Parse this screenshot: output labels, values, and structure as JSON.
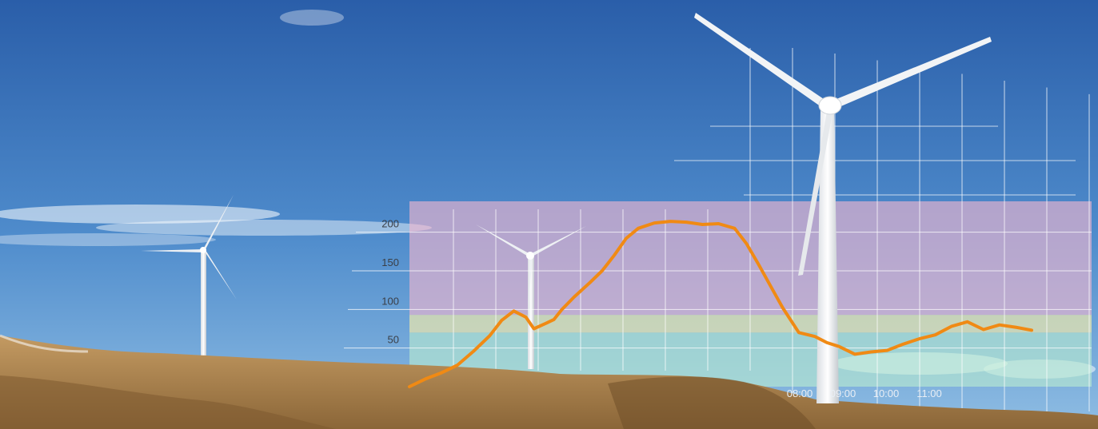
{
  "chart_data": {
    "type": "line",
    "x_tick_labels": [
      "08:00",
      "09:00",
      "10:00",
      "11:00"
    ],
    "y_tick_labels": [
      "50",
      "100",
      "150",
      "200"
    ],
    "y_ticks": [
      50,
      100,
      150,
      200
    ],
    "ylim": [
      0,
      240
    ],
    "grid": true,
    "bands": [
      {
        "from": 0,
        "to": 70,
        "color": "#b9ecd0"
      },
      {
        "from": 70,
        "to": 93,
        "color": "#fff2a8"
      },
      {
        "from": 93,
        "to": 240,
        "color": "#f3b6cf"
      }
    ],
    "line_color": "#f08a14",
    "series": [
      {
        "x": [
          "00:10",
          "00:30",
          "00:50",
          "01:10",
          "01:30",
          "01:50",
          "02:05",
          "02:20",
          "02:35",
          "02:45",
          "03:00",
          "03:10",
          "03:20",
          "03:35",
          "03:55",
          "04:10",
          "04:25",
          "04:40",
          "04:55",
          "05:15",
          "05:35",
          "05:55",
          "06:15",
          "06:35",
          "06:55",
          "07:10",
          "07:25",
          "07:40",
          "07:55",
          "08:15",
          "08:35",
          "08:50",
          "09:05",
          "09:25",
          "09:45",
          "10:05",
          "10:25",
          "10:45",
          "11:05",
          "11:25",
          "11:45",
          "12:05",
          "12:25",
          "12:45",
          "13:05"
        ],
        "y": [
          0,
          10,
          18,
          28,
          46,
          66,
          86,
          98,
          90,
          75,
          82,
          87,
          100,
          116,
          135,
          150,
          170,
          192,
          205,
          212,
          214,
          213,
          210,
          211,
          205,
          185,
          158,
          130,
          102,
          70,
          65,
          57,
          52,
          42,
          45,
          47,
          55,
          62,
          67,
          78,
          84,
          74,
          80,
          77,
          73
        ]
      }
    ]
  },
  "colors": {
    "sky_top": "#2d64b0",
    "sky_bottom": "#74a8d8",
    "sand": "#b88a52"
  }
}
